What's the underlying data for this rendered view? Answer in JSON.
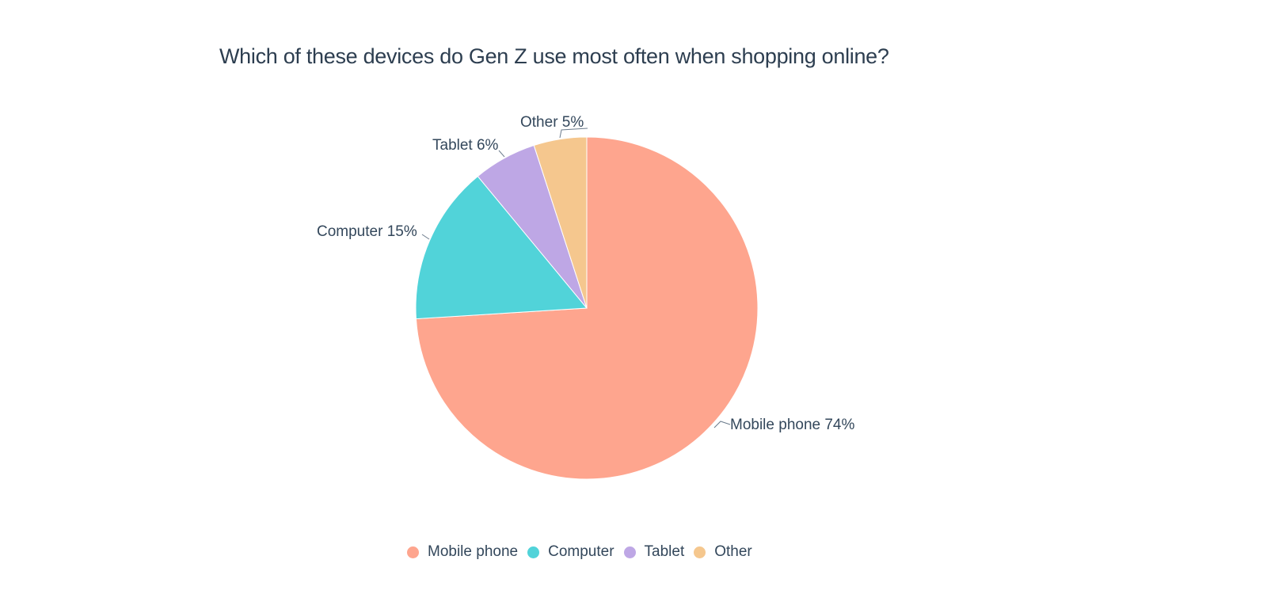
{
  "chart_data": {
    "type": "pie",
    "title": "Which of these devices do Gen Z use most often when shopping online?",
    "categories": [
      "Mobile phone",
      "Computer",
      "Tablet",
      "Other"
    ],
    "values": [
      74,
      15,
      6,
      5
    ],
    "unit": "%",
    "colors": [
      "#fea58e",
      "#51d3d9",
      "#bea7e5",
      "#f5c78e"
    ],
    "labels": [
      "Mobile phone 74%",
      "Computer 15%",
      "Tablet 6%",
      "Other 5%"
    ],
    "legend_position": "bottom",
    "start_angle": "12 o'clock, clockwise"
  },
  "legend": {
    "items": [
      {
        "label": "Mobile phone",
        "color": "#fea58e"
      },
      {
        "label": "Computer",
        "color": "#51d3d9"
      },
      {
        "label": "Tablet",
        "color": "#bea7e5"
      },
      {
        "label": "Other",
        "color": "#f5c78e"
      }
    ]
  }
}
